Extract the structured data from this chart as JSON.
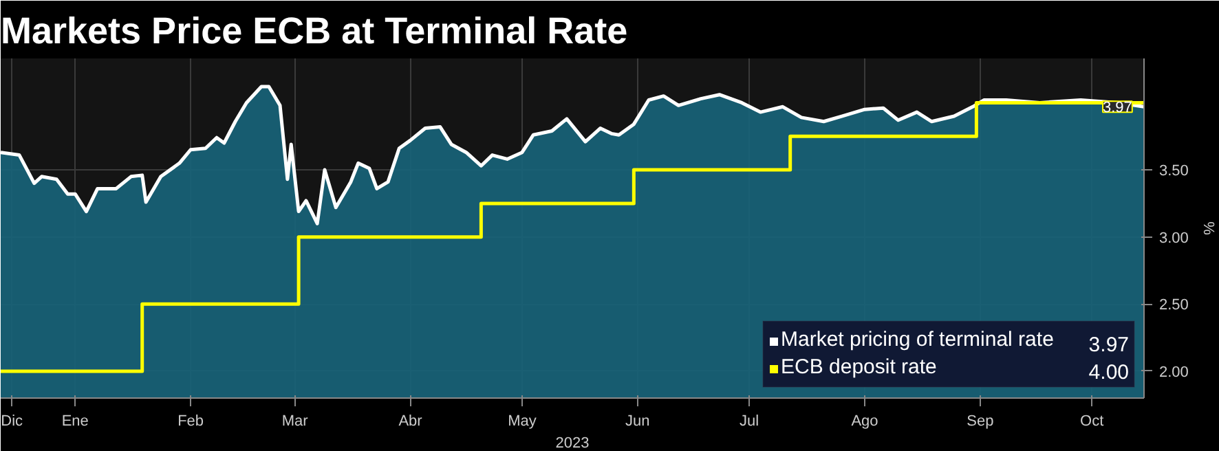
{
  "chart_data": {
    "type": "area",
    "title": "Markets Price ECB at Terminal Rate",
    "xlabel": "2023",
    "ylabel": "%",
    "xlim": [
      "2022-12-26",
      "2023-10-29"
    ],
    "ylim": [
      1.8,
      4.33
    ],
    "xticks": [
      {
        "value": "2022-12-29",
        "label": "Dic"
      },
      {
        "value": "2023-01-15",
        "label": "Ene"
      },
      {
        "value": "2023-02-15",
        "label": "Feb"
      },
      {
        "value": "2023-03-15",
        "label": "Mar"
      },
      {
        "value": "2023-04-15",
        "label": "Abr"
      },
      {
        "value": "2023-05-15",
        "label": "May"
      },
      {
        "value": "2023-06-15",
        "label": "Jun"
      },
      {
        "value": "2023-07-15",
        "label": "Jul"
      },
      {
        "value": "2023-08-15",
        "label": "Ago"
      },
      {
        "value": "2023-09-15",
        "label": "Sep"
      },
      {
        "value": "2023-10-15",
        "label": "Oct"
      }
    ],
    "yticks": [
      {
        "value": 2,
        "label": "2.00"
      },
      {
        "value": 2.5,
        "label": "2.50"
      },
      {
        "value": 3,
        "label": "3.00"
      },
      {
        "value": 3.5,
        "label": "3.50"
      }
    ],
    "grid": true,
    "legend": "bottom right",
    "series": [
      {
        "name": "Market pricing of terminal rate",
        "color": "#ffffff",
        "x": [
          "2022-12-26",
          "2022-12-31",
          "2023-01-04",
          "2023-01-06",
          "2023-01-10",
          "2023-01-13",
          "2023-01-15",
          "2023-01-18",
          "2023-01-21",
          "2023-01-26",
          "2023-01-30",
          "2023-02-02",
          "2023-02-03",
          "2023-02-07",
          "2023-02-12",
          "2023-02-15",
          "2023-02-19",
          "2023-02-22",
          "2023-02-24",
          "2023-02-27",
          "2023-03-02",
          "2023-03-06",
          "2023-03-08",
          "2023-03-11",
          "2023-03-13",
          "2023-03-14",
          "2023-03-16",
          "2023-03-18",
          "2023-03-21",
          "2023-03-23",
          "2023-03-26",
          "2023-03-30",
          "2023-04-01",
          "2023-04-04",
          "2023-04-06",
          "2023-04-09",
          "2023-04-12",
          "2023-04-15",
          "2023-04-19",
          "2023-04-23",
          "2023-04-26",
          "2023-04-30",
          "2023-05-04",
          "2023-05-07",
          "2023-05-11",
          "2023-05-15",
          "2023-05-18",
          "2023-05-23",
          "2023-05-27",
          "2023-06-01",
          "2023-06-05",
          "2023-06-08",
          "2023-06-10",
          "2023-06-14",
          "2023-06-18",
          "2023-06-22",
          "2023-06-26",
          "2023-07-02",
          "2023-07-07",
          "2023-07-13",
          "2023-07-18",
          "2023-07-24",
          "2023-07-29",
          "2023-08-04",
          "2023-08-09",
          "2023-08-15",
          "2023-08-20",
          "2023-08-24",
          "2023-08-29",
          "2023-09-02",
          "2023-09-08",
          "2023-09-13",
          "2023-09-16",
          "2023-09-22",
          "2023-10-01",
          "2023-10-12",
          "2023-10-22",
          "2023-10-29"
        ],
        "values": [
          3.63,
          3.61,
          3.4,
          3.45,
          3.43,
          3.32,
          3.32,
          3.19,
          3.36,
          3.36,
          3.45,
          3.46,
          3.26,
          3.45,
          3.55,
          3.65,
          3.66,
          3.74,
          3.7,
          3.86,
          4.0,
          4.12,
          4.12,
          3.98,
          3.43,
          3.69,
          3.19,
          3.27,
          3.1,
          3.5,
          3.22,
          3.41,
          3.55,
          3.51,
          3.36,
          3.41,
          3.66,
          3.72,
          3.81,
          3.82,
          3.69,
          3.63,
          3.53,
          3.61,
          3.58,
          3.63,
          3.76,
          3.79,
          3.88,
          3.71,
          3.81,
          3.77,
          3.76,
          3.84,
          4.02,
          4.05,
          3.98,
          4.03,
          4.06,
          4.0,
          3.93,
          3.97,
          3.89,
          3.86,
          3.9,
          3.95,
          3.96,
          3.87,
          3.93,
          3.86,
          3.9,
          3.97,
          4.02,
          4.02,
          4.0,
          4.02,
          4.0,
          3.97
        ]
      },
      {
        "name": "ECB deposit rate",
        "type": "step",
        "color": "#ffff00",
        "x": [
          "2022-12-26",
          "2023-02-02",
          "2023-03-16",
          "2023-05-04",
          "2023-06-14",
          "2023-07-26",
          "2023-09-14",
          "2023-10-29"
        ],
        "values": [
          2.0,
          2.5,
          3.0,
          3.25,
          3.5,
          3.75,
          4.0,
          4.0
        ]
      }
    ],
    "annotations": [
      "3.97",
      "4.00",
      {
        "text": "3.97",
        "x": "2023-10-29",
        "y": 3.97
      }
    ]
  }
}
